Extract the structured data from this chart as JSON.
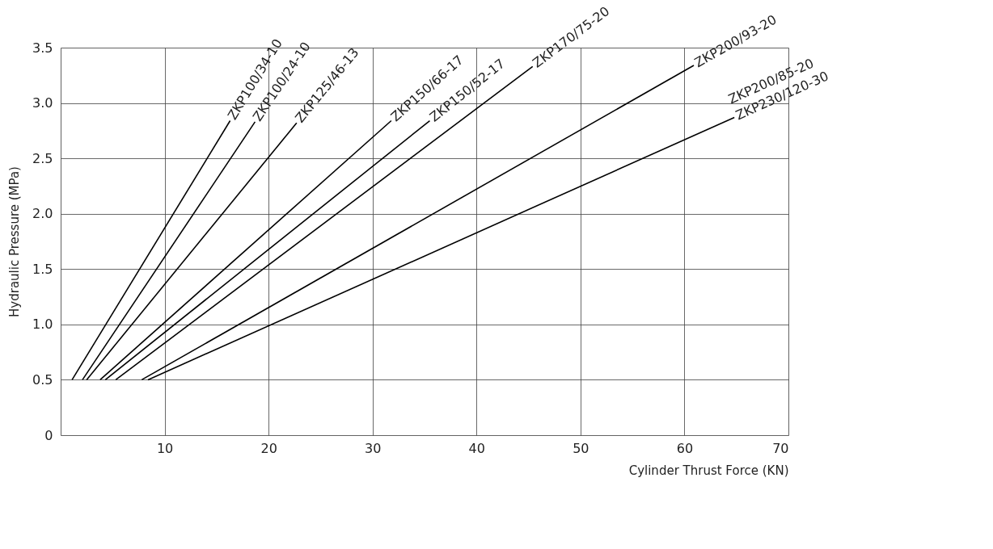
{
  "chart_data": {
    "type": "line",
    "xlabel": "Cylinder Thrust Force  (KN)",
    "ylabel": "Hydraulic Pressure  (MPa)",
    "xlim": [
      0,
      70
    ],
    "xticks": [
      {
        "value": 0,
        "label": null
      },
      10,
      20,
      30,
      40,
      50,
      60,
      70
    ],
    "ylim": [
      0,
      3.5
    ],
    "yticks": [
      0,
      0.5,
      {
        "value": 1,
        "label": "1.0"
      },
      1.5,
      {
        "value": 2,
        "label": "2.0"
      },
      2.5,
      {
        "value": 3,
        "label": "3.0"
      },
      3.5
    ],
    "grid": true,
    "legend": false,
    "marker": "none",
    "line_style": "solid",
    "series": [
      {
        "name": "ZKP100/34-10",
        "color": "#000000",
        "x": [
          1.1,
          16.3
        ],
        "values": [
          0.5,
          2.84
        ]
      },
      {
        "name": "ZKP100/24-10",
        "color": "#000000",
        "x": [
          2.1,
          18.7
        ],
        "values": [
          0.5,
          2.83
        ]
      },
      {
        "name": "ZKP125/46-13",
        "color": "#000000",
        "x": [
          2.5,
          22.7
        ],
        "values": [
          0.5,
          2.82
        ]
      },
      {
        "name": "ZKP150/66-17",
        "color": "#000000",
        "x": [
          3.8,
          31.8
        ],
        "values": [
          0.5,
          2.84
        ]
      },
      {
        "name": "ZKP150/52-17",
        "color": "#000000",
        "x": [
          4.3,
          35.5
        ],
        "values": [
          0.5,
          2.84
        ]
      },
      {
        "name": "ZKP170/75-20",
        "color": "#000000",
        "x": [
          5.3,
          45.4
        ],
        "values": [
          0.5,
          3.33
        ]
      },
      {
        "name": "ZKP200/93-20",
        "color": "#000000",
        "x": [
          7.8,
          60.9
        ],
        "values": [
          0.5,
          3.34
        ]
      },
      {
        "name": "ZKP230/120-30",
        "color": "#000000",
        "x": [
          8.4,
          64.8
        ],
        "values": [
          0.5,
          2.87
        ]
      }
    ],
    "annotations": [
      "ZKP200/85-20"
    ]
  }
}
